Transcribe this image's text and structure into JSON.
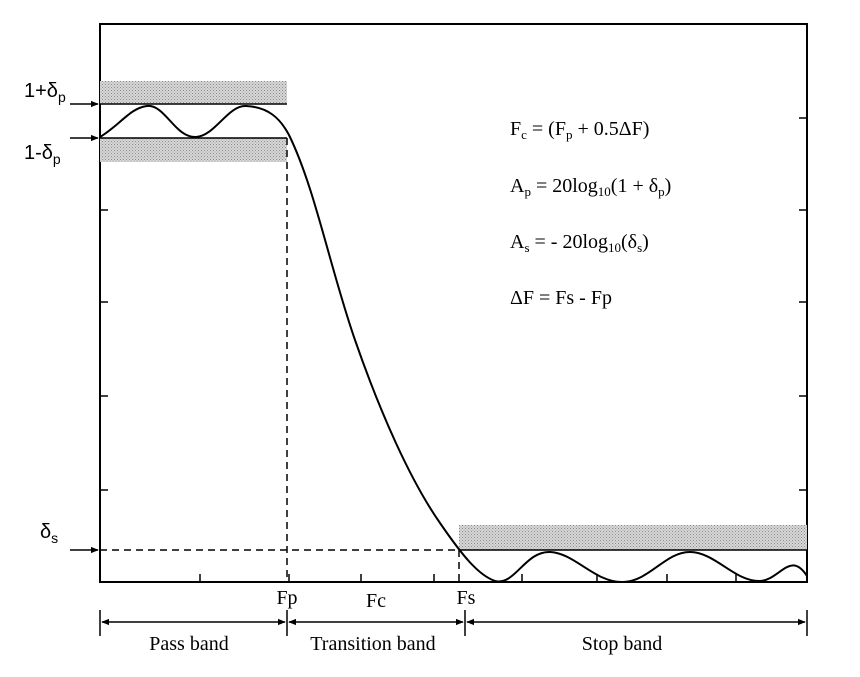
{
  "left_labels": {
    "upper_tolerance": {
      "base": "1+δ",
      "sub": "p"
    },
    "lower_tolerance": {
      "base": "1-δ",
      "sub": "p"
    },
    "stopband_tolerance": {
      "base": "δ",
      "sub": "s"
    }
  },
  "axis_labels": {
    "fp": "Fp",
    "fc": "Fc",
    "fs": "Fs"
  },
  "bands": {
    "pass": "Pass band",
    "transition": "Transition band",
    "stop": "Stop band"
  },
  "equations": {
    "fc": {
      "lhs_base": "F",
      "lhs_sub": "c",
      "part1": " = (F",
      "sub1": "p",
      "part2": " + 0.5ΔF)"
    },
    "ap": {
      "lhs_base": "A",
      "lhs_sub": "p",
      "part1": " = 20log",
      "sub1": "10",
      "part2": "(1 + δ",
      "sub2": "p",
      "part3": ")"
    },
    "as": {
      "lhs_base": "A",
      "lhs_sub": "s",
      "part1": " = - 20log",
      "sub1": "10",
      "part2": "(δ",
      "sub2": "s",
      "part3": ")"
    },
    "df": {
      "text": "ΔF = Fs - Fp"
    }
  }
}
